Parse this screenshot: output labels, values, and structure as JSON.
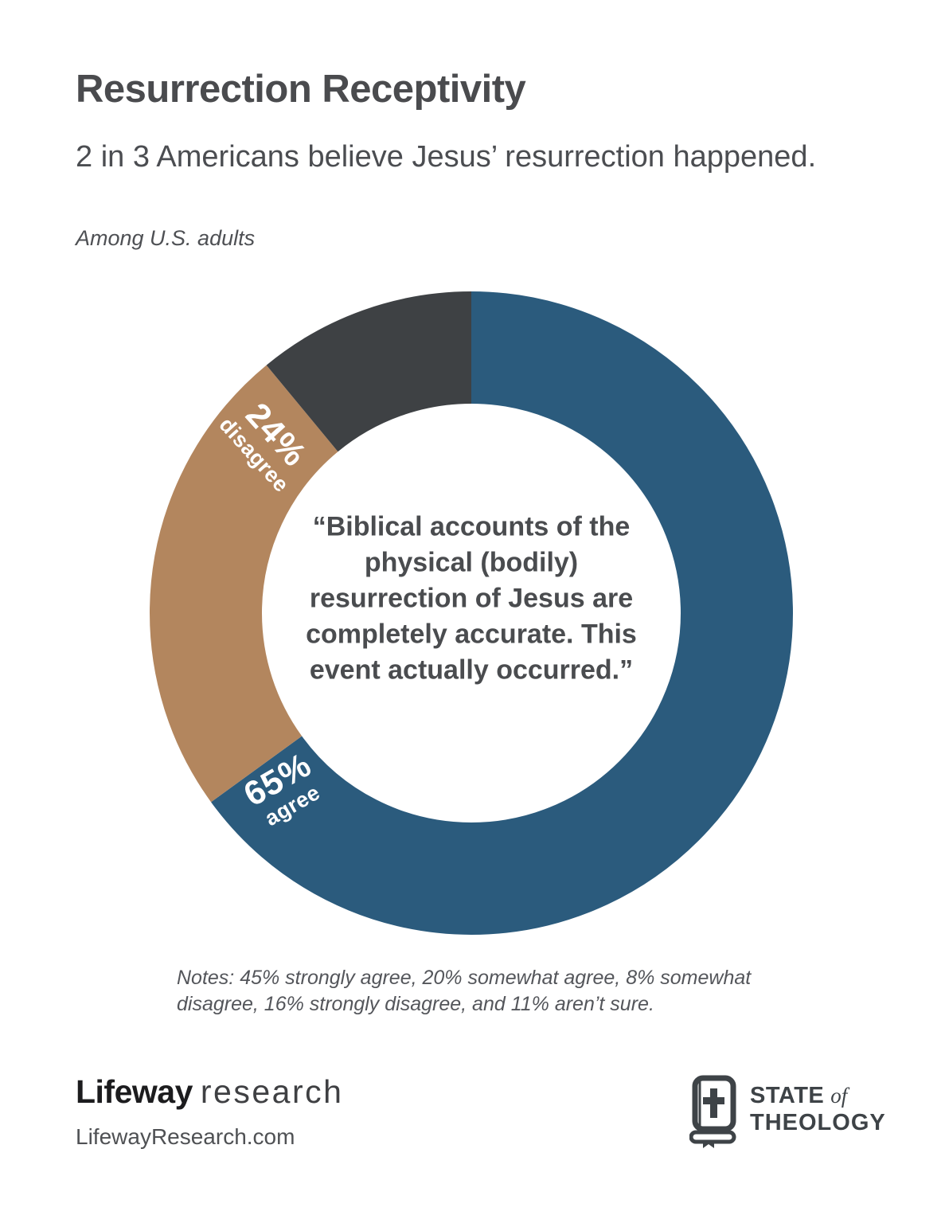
{
  "page": {
    "title": "Resurrection Receptivity",
    "subtitle": "2 in 3 Americans believe Jesus’ resurrection happened.",
    "audience": "Among U.S. adults",
    "notes": "Notes: 45% strongly agree, 20% somewhat agree, 8% somewhat disagree, 16% strongly disagree, and 11% aren’t sure."
  },
  "chart_data": {
    "type": "pie",
    "variant": "donut",
    "title": "Resurrection Receptivity",
    "statement": "“Biblical accounts of the physical (bodily) resurrection of Jesus are completely accurate. This event actually occurred.”",
    "start_angle_deg": 0,
    "direction": "clockwise",
    "outer_radius_px": 404,
    "inner_radius_px": 263,
    "segments": [
      {
        "name": "agree",
        "value": 65,
        "value_label": "65%",
        "word_label": "agree",
        "color": "#2B5B7D"
      },
      {
        "name": "disagree",
        "value": 24,
        "value_label": "24%",
        "word_label": "disagree",
        "color": "#B3865E"
      },
      {
        "name": "not-sure-unlabeled",
        "value": 11,
        "value_label": "",
        "word_label": "",
        "color": "#3E4144"
      }
    ],
    "notes_breakdown": {
      "strongly_agree_pct": 45,
      "somewhat_agree_pct": 20,
      "somewhat_disagree_pct": 8,
      "strongly_disagree_pct": 16,
      "arent_sure_pct": 11
    }
  },
  "footer": {
    "lifeway": {
      "brand": "Lifeway",
      "suffix": "research",
      "url": "LifewayResearch.com"
    },
    "state_of_theology": {
      "word1": "STATE",
      "word2": "of",
      "word3": "THEOLOGY",
      "icon": "bible-book-cross-icon"
    }
  }
}
